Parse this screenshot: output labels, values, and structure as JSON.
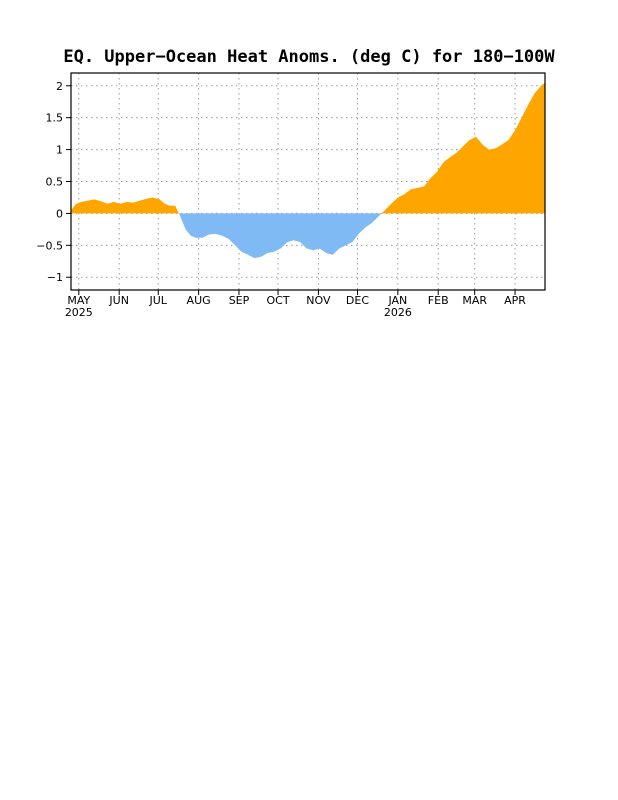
{
  "chart_data": {
    "type": "area",
    "title": "EQ. Upper−Ocean Heat Anoms. (deg C) for 180−100W",
    "xlabel": "",
    "ylabel": "",
    "x_range": [
      "2025-04-25",
      "2026-04-24"
    ],
    "ylim": [
      -1.2,
      2.2
    ],
    "yticks": [
      -1,
      -0.5,
      0,
      0.5,
      1,
      1.5,
      2
    ],
    "ytick_labels": [
      "−1",
      "−0.5",
      "0",
      "0.5",
      "1",
      "1.5",
      "2"
    ],
    "xticks": [
      {
        "date": "2025-05-01",
        "label": "MAY",
        "year": "2025"
      },
      {
        "date": "2025-06-01",
        "label": "JUN"
      },
      {
        "date": "2025-07-01",
        "label": "JUL"
      },
      {
        "date": "2025-08-01",
        "label": "AUG"
      },
      {
        "date": "2025-09-01",
        "label": "SEP"
      },
      {
        "date": "2025-10-01",
        "label": "OCT"
      },
      {
        "date": "2025-11-01",
        "label": "NOV"
      },
      {
        "date": "2025-12-01",
        "label": "DEC"
      },
      {
        "date": "2026-01-01",
        "label": "JAN",
        "year": "2026"
      },
      {
        "date": "2026-02-01",
        "label": "FEB"
      },
      {
        "date": "2026-03-01",
        "label": "MAR"
      },
      {
        "date": "2026-04-01",
        "label": "APR"
      }
    ],
    "grid": true,
    "positive_color": "#ffa500",
    "negative_color": "#7fbaf5",
    "series": [
      {
        "x": [
          "2025-04-25",
          "2025-04-29",
          "2025-05-03",
          "2025-05-08",
          "2025-05-13",
          "2025-05-18",
          "2025-05-23",
          "2025-05-28",
          "2025-06-02",
          "2025-06-07",
          "2025-06-12",
          "2025-06-17",
          "2025-06-22",
          "2025-06-27",
          "2025-07-02",
          "2025-07-06",
          "2025-07-10",
          "2025-07-14",
          "2025-07-18",
          "2025-07-22",
          "2025-07-26",
          "2025-07-30",
          "2025-08-04",
          "2025-08-09",
          "2025-08-14",
          "2025-08-19",
          "2025-08-24",
          "2025-08-29",
          "2025-09-03",
          "2025-09-08",
          "2025-09-13",
          "2025-09-18",
          "2025-09-23",
          "2025-09-28",
          "2025-10-03",
          "2025-10-08",
          "2025-10-13",
          "2025-10-18",
          "2025-10-23",
          "2025-10-28",
          "2025-11-02",
          "2025-11-07",
          "2025-11-12",
          "2025-11-17",
          "2025-11-22",
          "2025-11-27",
          "2025-12-02",
          "2025-12-07",
          "2025-12-12",
          "2025-12-17",
          "2025-12-22",
          "2025-12-27",
          "2026-01-01",
          "2026-01-06",
          "2026-01-11",
          "2026-01-16",
          "2026-01-21",
          "2026-01-26",
          "2026-01-31",
          "2026-02-05",
          "2026-02-10",
          "2026-02-15",
          "2026-02-20",
          "2026-02-25",
          "2026-03-02",
          "2026-03-07",
          "2026-03-12",
          "2026-03-17",
          "2026-03-22",
          "2026-03-27",
          "2026-04-01",
          "2026-04-06",
          "2026-04-11",
          "2026-04-16",
          "2026-04-21",
          "2026-04-24"
        ],
        "y": [
          0.05,
          0.15,
          0.18,
          0.2,
          0.22,
          0.19,
          0.15,
          0.18,
          0.15,
          0.18,
          0.17,
          0.2,
          0.23,
          0.25,
          0.22,
          0.15,
          0.12,
          0.12,
          -0.05,
          -0.25,
          -0.35,
          -0.38,
          -0.38,
          -0.33,
          -0.32,
          -0.35,
          -0.4,
          -0.5,
          -0.6,
          -0.65,
          -0.7,
          -0.68,
          -0.62,
          -0.6,
          -0.55,
          -0.45,
          -0.42,
          -0.45,
          -0.55,
          -0.58,
          -0.55,
          -0.62,
          -0.65,
          -0.55,
          -0.5,
          -0.45,
          -0.32,
          -0.22,
          -0.15,
          -0.05,
          0.05,
          0.15,
          0.25,
          0.3,
          0.38,
          0.4,
          0.42,
          0.55,
          0.65,
          0.8,
          0.88,
          0.95,
          1.05,
          1.15,
          1.2,
          1.08,
          1.0,
          1.02,
          1.08,
          1.15,
          1.3,
          1.5,
          1.7,
          1.88,
          2.0,
          2.05
        ]
      }
    ]
  }
}
